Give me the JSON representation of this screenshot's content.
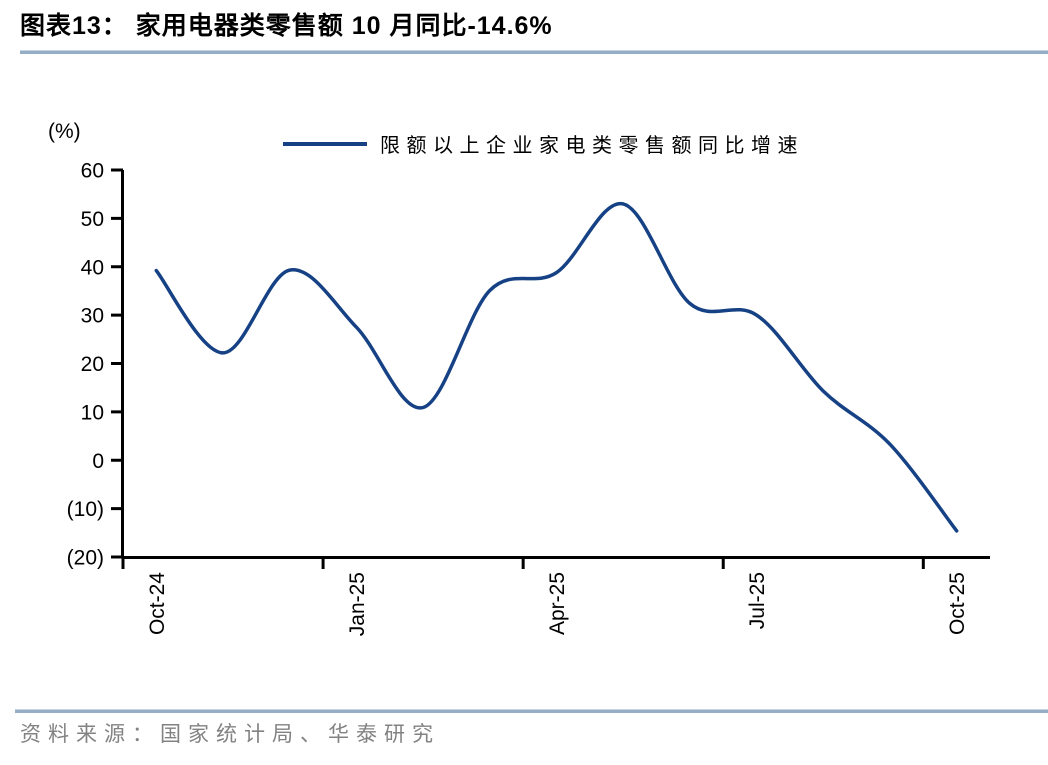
{
  "title": "图表13：  家用电器类零售额 10 月同比-14.6%",
  "source": "资料来源：国家统计局、华泰研究",
  "chart_data": {
    "type": "line",
    "smooth": true,
    "title": "",
    "ylabel": "(%)",
    "xlabel": "",
    "legend_position": "top",
    "grid": false,
    "line_color": "#164285",
    "axis_color": "#000000",
    "categories": [
      "Oct-24",
      "Nov-24",
      "Dec-24",
      "Jan-25",
      "Feb-25",
      "Mar-25",
      "Apr-25",
      "May-25",
      "Jun-25",
      "Jul-25",
      "Aug-25",
      "Sep-25",
      "Oct-25"
    ],
    "series": [
      {
        "name": "限额以上企业家电类零售额同比增速",
        "values": [
          39.2,
          22.2,
          39.3,
          27.5,
          10.9,
          35.1,
          38.8,
          53.0,
          32.4,
          30.0,
          14.3,
          3.3,
          -14.6
        ]
      }
    ],
    "ylim": [
      -20,
      60
    ],
    "y_ticks": [
      60,
      50,
      40,
      30,
      20,
      10,
      0,
      -10,
      -20
    ],
    "y_tick_labels": [
      "60",
      "50",
      "40",
      "30",
      "20",
      "10",
      "0",
      "(10)",
      "(20)"
    ],
    "x_tick_indices": [
      0,
      3,
      6,
      9,
      12
    ],
    "x_tick_labels": [
      "Oct-24",
      "Jan-25",
      "Apr-25",
      "Jul-25",
      "Oct-25"
    ]
  }
}
